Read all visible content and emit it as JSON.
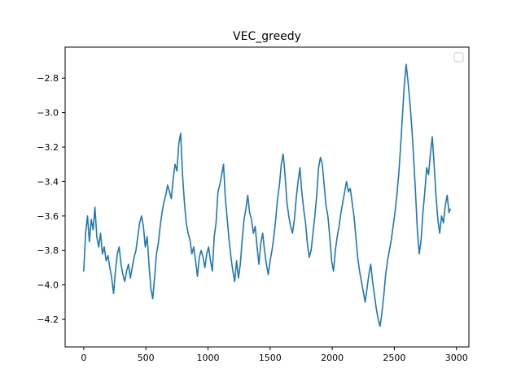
{
  "chart_data": {
    "type": "line",
    "title": "VEC_greedy",
    "xlabel": "",
    "ylabel": "",
    "xlim": [
      -150,
      3100
    ],
    "ylim": [
      -4.36,
      -2.62
    ],
    "x_ticks": [
      0,
      500,
      1000,
      1500,
      2000,
      2500,
      3000
    ],
    "x_tick_labels": [
      "0",
      "500",
      "1000",
      "1500",
      "2000",
      "2500",
      "3000"
    ],
    "y_ticks": [
      -2.8,
      -3.0,
      -3.2,
      -3.4,
      -3.6,
      -3.8,
      -4.0,
      -4.2
    ],
    "y_tick_labels": [
      "−2.8",
      "−3.0",
      "−3.2",
      "−3.4",
      "−3.6",
      "−3.8",
      "−4.0",
      "−4.2"
    ],
    "grid": false,
    "legend": "top-right (empty)",
    "series": [
      {
        "color": "#1f77b4",
        "points": [
          [
            0,
            -3.92
          ],
          [
            15,
            -3.7
          ],
          [
            30,
            -3.6
          ],
          [
            45,
            -3.75
          ],
          [
            60,
            -3.62
          ],
          [
            75,
            -3.68
          ],
          [
            90,
            -3.55
          ],
          [
            105,
            -3.72
          ],
          [
            120,
            -3.78
          ],
          [
            135,
            -3.7
          ],
          [
            150,
            -3.82
          ],
          [
            165,
            -3.78
          ],
          [
            180,
            -3.86
          ],
          [
            195,
            -3.83
          ],
          [
            210,
            -3.9
          ],
          [
            225,
            -3.96
          ],
          [
            240,
            -4.05
          ],
          [
            255,
            -3.92
          ],
          [
            270,
            -3.82
          ],
          [
            285,
            -3.78
          ],
          [
            300,
            -3.88
          ],
          [
            315,
            -3.94
          ],
          [
            330,
            -3.98
          ],
          [
            345,
            -3.92
          ],
          [
            360,
            -3.88
          ],
          [
            375,
            -3.96
          ],
          [
            390,
            -3.9
          ],
          [
            405,
            -3.84
          ],
          [
            420,
            -3.8
          ],
          [
            435,
            -3.72
          ],
          [
            450,
            -3.64
          ],
          [
            465,
            -3.6
          ],
          [
            480,
            -3.66
          ],
          [
            495,
            -3.78
          ],
          [
            510,
            -3.72
          ],
          [
            525,
            -3.88
          ],
          [
            540,
            -4.02
          ],
          [
            555,
            -4.08
          ],
          [
            570,
            -3.96
          ],
          [
            585,
            -3.82
          ],
          [
            600,
            -3.76
          ],
          [
            615,
            -3.66
          ],
          [
            630,
            -3.58
          ],
          [
            645,
            -3.52
          ],
          [
            660,
            -3.48
          ],
          [
            675,
            -3.42
          ],
          [
            690,
            -3.46
          ],
          [
            705,
            -3.5
          ],
          [
            720,
            -3.38
          ],
          [
            735,
            -3.3
          ],
          [
            750,
            -3.34
          ],
          [
            765,
            -3.18
          ],
          [
            780,
            -3.12
          ],
          [
            795,
            -3.36
          ],
          [
            810,
            -3.52
          ],
          [
            825,
            -3.64
          ],
          [
            840,
            -3.7
          ],
          [
            855,
            -3.74
          ],
          [
            870,
            -3.82
          ],
          [
            885,
            -3.78
          ],
          [
            900,
            -3.86
          ],
          [
            915,
            -3.95
          ],
          [
            930,
            -3.84
          ],
          [
            945,
            -3.8
          ],
          [
            960,
            -3.84
          ],
          [
            975,
            -3.9
          ],
          [
            990,
            -3.82
          ],
          [
            1005,
            -3.78
          ],
          [
            1020,
            -3.86
          ],
          [
            1035,
            -3.92
          ],
          [
            1050,
            -3.72
          ],
          [
            1065,
            -3.64
          ],
          [
            1080,
            -3.46
          ],
          [
            1095,
            -3.42
          ],
          [
            1110,
            -3.36
          ],
          [
            1125,
            -3.3
          ],
          [
            1140,
            -3.5
          ],
          [
            1155,
            -3.62
          ],
          [
            1170,
            -3.74
          ],
          [
            1185,
            -3.84
          ],
          [
            1200,
            -3.92
          ],
          [
            1215,
            -3.98
          ],
          [
            1230,
            -3.86
          ],
          [
            1245,
            -3.96
          ],
          [
            1260,
            -3.88
          ],
          [
            1275,
            -3.74
          ],
          [
            1290,
            -3.62
          ],
          [
            1305,
            -3.56
          ],
          [
            1320,
            -3.48
          ],
          [
            1335,
            -3.58
          ],
          [
            1350,
            -3.62
          ],
          [
            1365,
            -3.7
          ],
          [
            1380,
            -3.66
          ],
          [
            1395,
            -3.78
          ],
          [
            1410,
            -3.88
          ],
          [
            1425,
            -3.76
          ],
          [
            1440,
            -3.7
          ],
          [
            1455,
            -3.8
          ],
          [
            1470,
            -3.88
          ],
          [
            1485,
            -3.94
          ],
          [
            1500,
            -3.86
          ],
          [
            1515,
            -3.8
          ],
          [
            1530,
            -3.72
          ],
          [
            1545,
            -3.62
          ],
          [
            1560,
            -3.5
          ],
          [
            1575,
            -3.42
          ],
          [
            1590,
            -3.3
          ],
          [
            1605,
            -3.24
          ],
          [
            1620,
            -3.36
          ],
          [
            1635,
            -3.52
          ],
          [
            1650,
            -3.6
          ],
          [
            1665,
            -3.66
          ],
          [
            1680,
            -3.7
          ],
          [
            1695,
            -3.62
          ],
          [
            1710,
            -3.5
          ],
          [
            1725,
            -3.4
          ],
          [
            1740,
            -3.32
          ],
          [
            1755,
            -3.46
          ],
          [
            1770,
            -3.56
          ],
          [
            1785,
            -3.64
          ],
          [
            1800,
            -3.76
          ],
          [
            1815,
            -3.84
          ],
          [
            1830,
            -3.8
          ],
          [
            1845,
            -3.7
          ],
          [
            1860,
            -3.6
          ],
          [
            1875,
            -3.48
          ],
          [
            1890,
            -3.32
          ],
          [
            1905,
            -3.26
          ],
          [
            1920,
            -3.3
          ],
          [
            1935,
            -3.42
          ],
          [
            1950,
            -3.54
          ],
          [
            1965,
            -3.6
          ],
          [
            1980,
            -3.72
          ],
          [
            1995,
            -3.86
          ],
          [
            2010,
            -3.92
          ],
          [
            2025,
            -3.8
          ],
          [
            2040,
            -3.72
          ],
          [
            2055,
            -3.66
          ],
          [
            2070,
            -3.58
          ],
          [
            2085,
            -3.52
          ],
          [
            2100,
            -3.46
          ],
          [
            2115,
            -3.4
          ],
          [
            2130,
            -3.46
          ],
          [
            2145,
            -3.44
          ],
          [
            2160,
            -3.52
          ],
          [
            2175,
            -3.6
          ],
          [
            2190,
            -3.72
          ],
          [
            2205,
            -3.84
          ],
          [
            2220,
            -3.92
          ],
          [
            2235,
            -3.98
          ],
          [
            2250,
            -4.04
          ],
          [
            2265,
            -4.1
          ],
          [
            2280,
            -4.02
          ],
          [
            2295,
            -3.94
          ],
          [
            2310,
            -3.88
          ],
          [
            2325,
            -3.98
          ],
          [
            2340,
            -4.06
          ],
          [
            2355,
            -4.14
          ],
          [
            2370,
            -4.2
          ],
          [
            2385,
            -4.24
          ],
          [
            2400,
            -4.16
          ],
          [
            2415,
            -4.06
          ],
          [
            2430,
            -3.94
          ],
          [
            2445,
            -3.86
          ],
          [
            2460,
            -3.8
          ],
          [
            2475,
            -3.74
          ],
          [
            2490,
            -3.66
          ],
          [
            2505,
            -3.58
          ],
          [
            2520,
            -3.48
          ],
          [
            2535,
            -3.36
          ],
          [
            2550,
            -3.2
          ],
          [
            2565,
            -3.02
          ],
          [
            2580,
            -2.84
          ],
          [
            2595,
            -2.72
          ],
          [
            2610,
            -2.82
          ],
          [
            2625,
            -2.94
          ],
          [
            2640,
            -3.08
          ],
          [
            2655,
            -3.26
          ],
          [
            2670,
            -3.46
          ],
          [
            2685,
            -3.68
          ],
          [
            2700,
            -3.82
          ],
          [
            2715,
            -3.74
          ],
          [
            2730,
            -3.58
          ],
          [
            2745,
            -3.46
          ],
          [
            2760,
            -3.32
          ],
          [
            2775,
            -3.36
          ],
          [
            2790,
            -3.24
          ],
          [
            2805,
            -3.14
          ],
          [
            2820,
            -3.3
          ],
          [
            2835,
            -3.48
          ],
          [
            2850,
            -3.62
          ],
          [
            2865,
            -3.7
          ],
          [
            2880,
            -3.6
          ],
          [
            2895,
            -3.64
          ],
          [
            2910,
            -3.54
          ],
          [
            2925,
            -3.48
          ],
          [
            2940,
            -3.58
          ],
          [
            2950,
            -3.56
          ]
        ]
      }
    ]
  }
}
